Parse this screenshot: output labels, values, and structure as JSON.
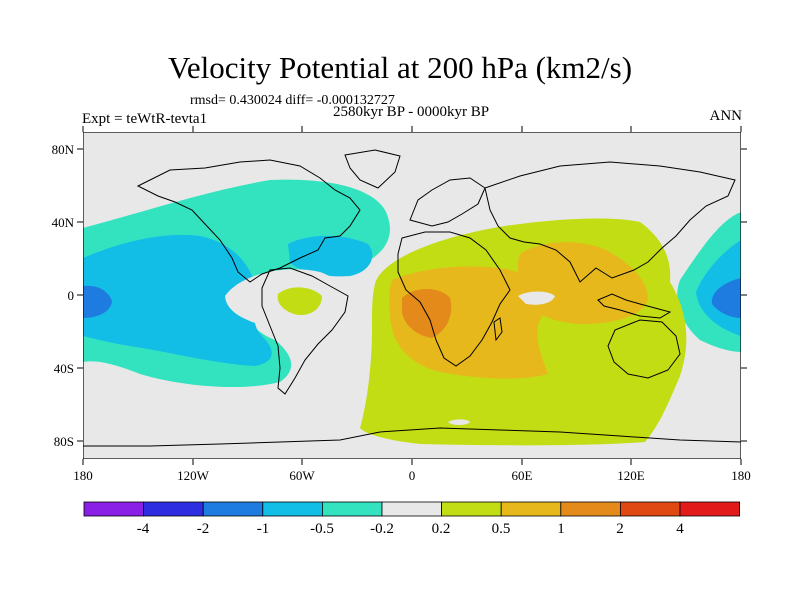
{
  "title": "Velocity Potential at 200 hPa (km2/s)",
  "stats": "rmsd= 0.430024 diff= -0.000132727",
  "subtitle": "2580kyr BP - 0000kyr BP",
  "experiment": "Expt = teWtR-tevta1",
  "season": "ANN",
  "axes": {
    "x_ticks": [
      "180",
      "120W",
      "60W",
      "0",
      "60E",
      "120E",
      "180"
    ],
    "y_ticks": [
      "80N",
      "40N",
      "0",
      "40S",
      "80S"
    ]
  },
  "colorbar": {
    "labels": [
      "-4",
      "-2",
      "-1",
      "-0.5",
      "-0.2",
      "0.2",
      "0.5",
      "1",
      "2",
      "4"
    ],
    "colors": [
      "#8a1fe6",
      "#2e2ee0",
      "#1e7ce0",
      "#12bde6",
      "#33e3c0",
      "#e8e8e8",
      "#c2dd14",
      "#e6b81c",
      "#e48a1a",
      "#e04a12",
      "#e21a1a"
    ]
  },
  "field_colors": {
    "background": "#e8e8e8",
    "neg_weak": "#33e3c0",
    "neg_mid": "#12bde6",
    "neg_strong": "#1e7ce0",
    "pos_weak": "#c2dd14",
    "pos_mid": "#e6b81c",
    "pos_strong": "#e48a1a"
  }
}
